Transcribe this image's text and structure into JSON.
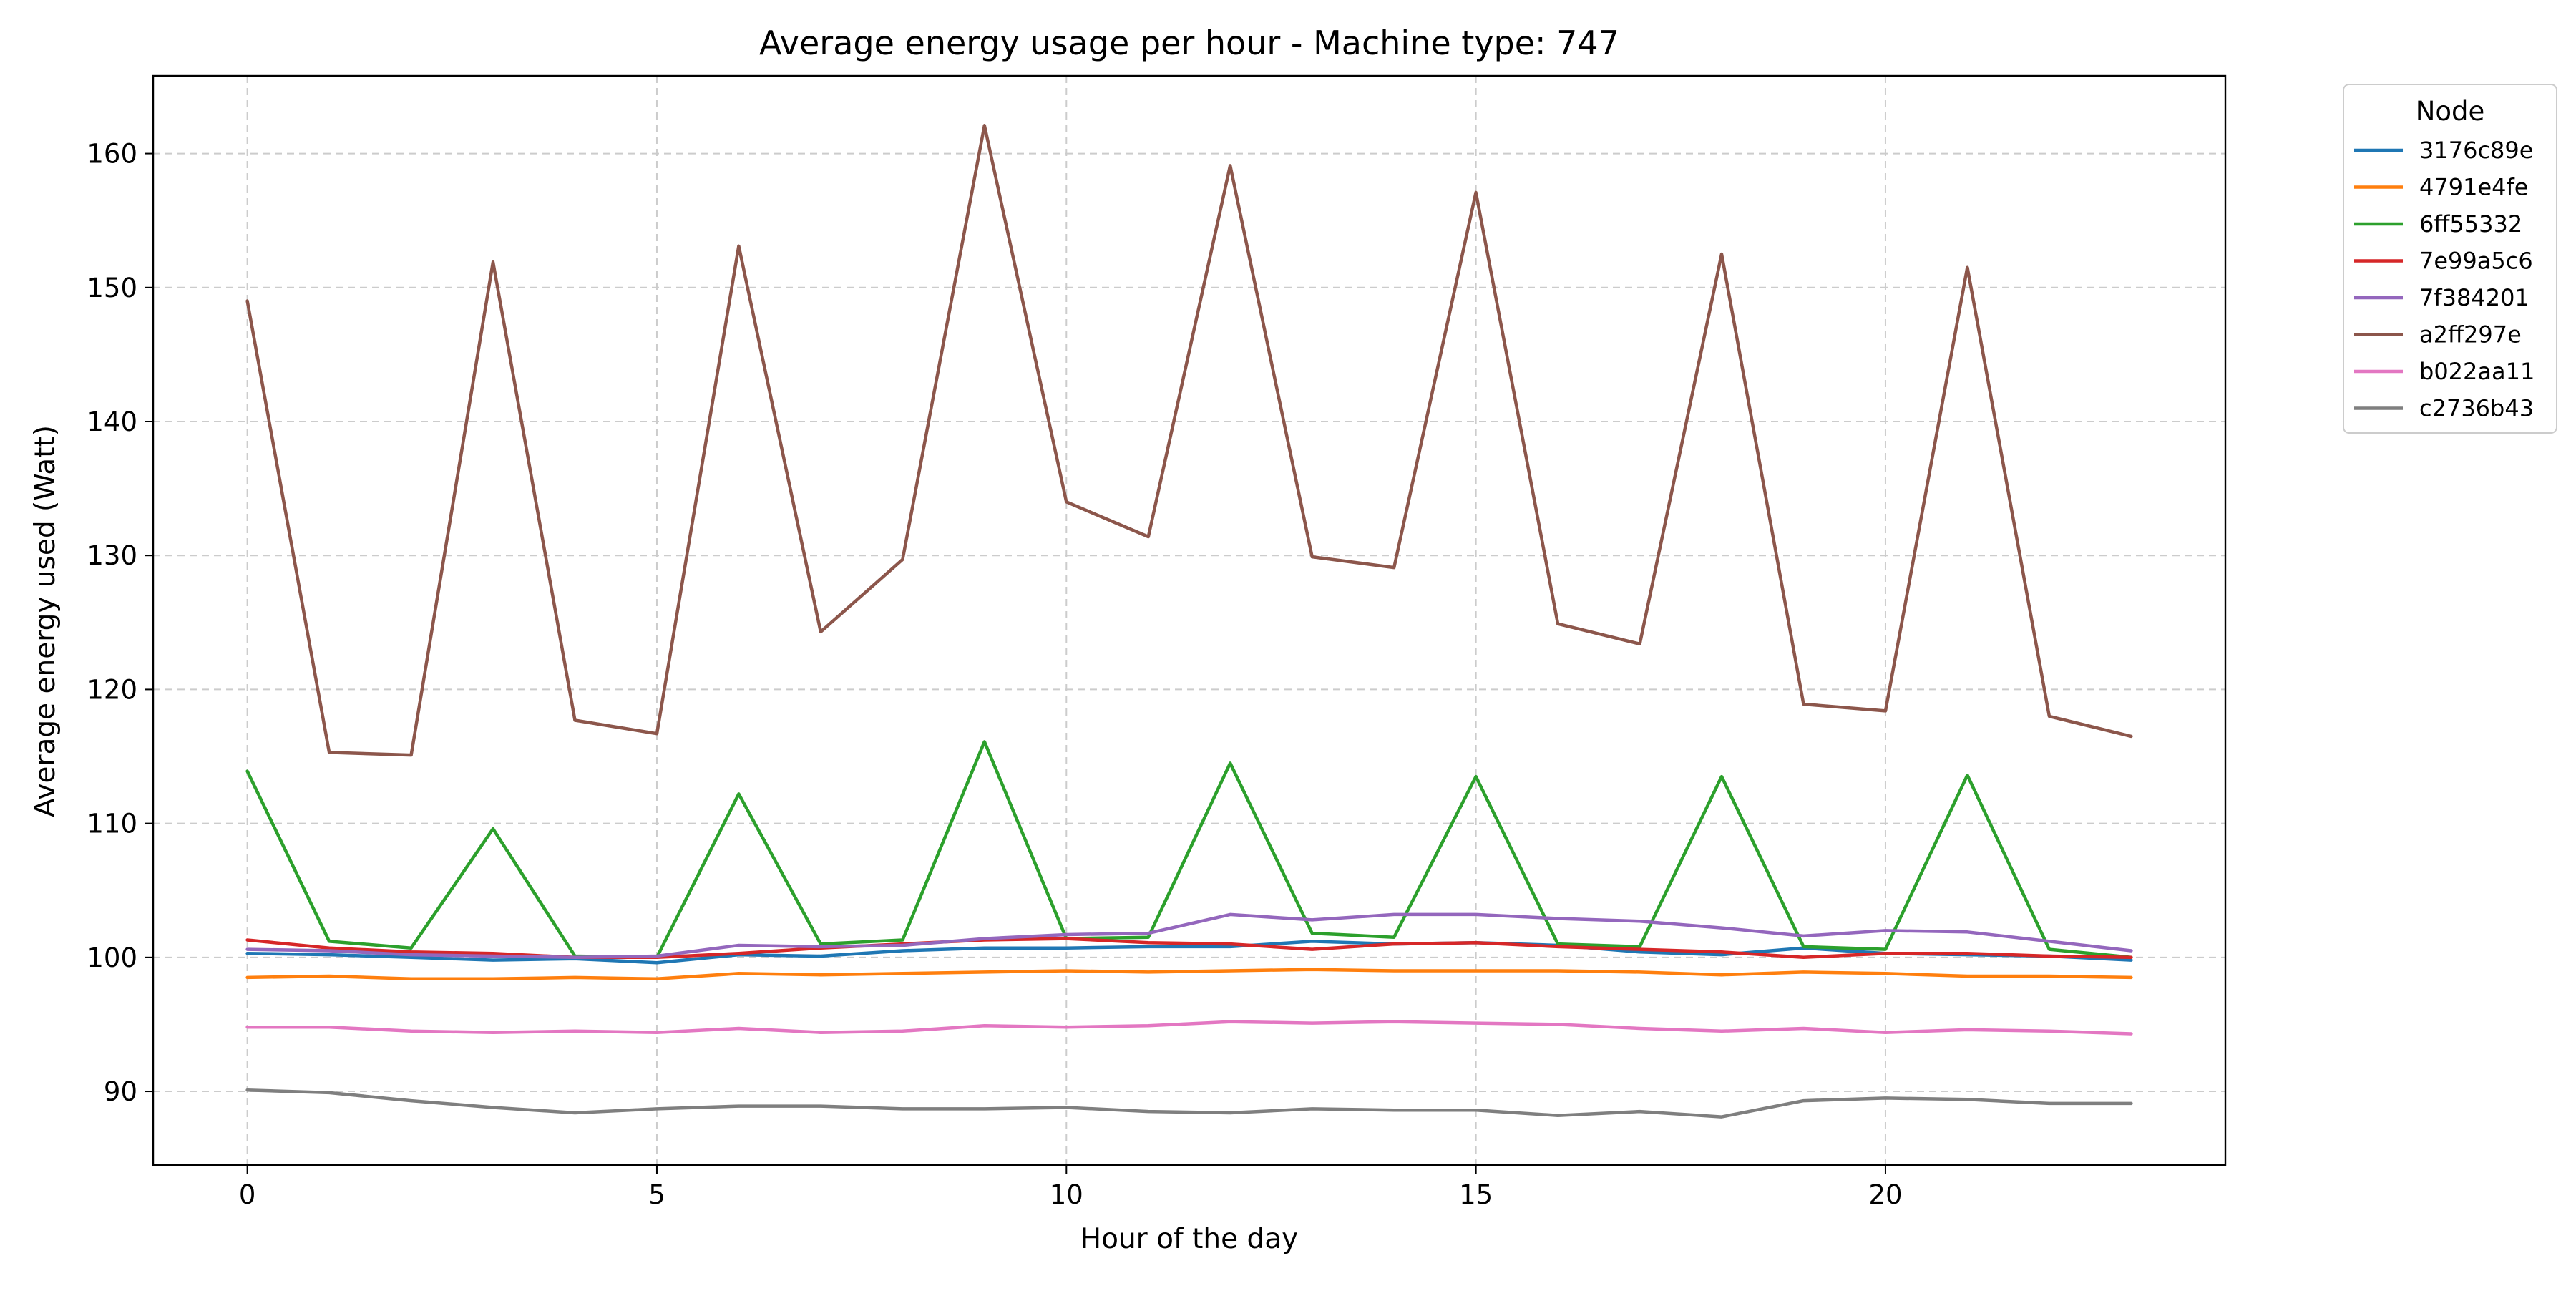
{
  "chart_data": {
    "type": "line",
    "title": "Average energy usage per hour - Machine type: 747",
    "xlabel": "Hour of the day",
    "ylabel": "Average energy used (Watt)",
    "xlim": [
      -1.15,
      24.15
    ],
    "ylim": [
      84.5,
      165.8
    ],
    "xticks": [
      0,
      5,
      10,
      15,
      20
    ],
    "yticks": [
      90,
      100,
      110,
      120,
      130,
      140,
      150,
      160
    ],
    "grid": true,
    "grid_style": "dashed",
    "legend": {
      "title": "Node",
      "placement": "outside-top-right"
    },
    "x": [
      0,
      1,
      2,
      3,
      4,
      5,
      6,
      7,
      8,
      9,
      10,
      11,
      12,
      13,
      14,
      15,
      16,
      17,
      18,
      19,
      20,
      21,
      22,
      23
    ],
    "series": [
      {
        "name": "3176c89e",
        "color": "#1f77b4",
        "values": [
          100.3,
          100.2,
          100.0,
          99.8,
          99.9,
          99.6,
          100.2,
          100.1,
          100.5,
          100.7,
          100.7,
          100.8,
          100.8,
          101.2,
          101.0,
          101.1,
          100.9,
          100.4,
          100.2,
          100.7,
          100.3,
          100.2,
          100.1,
          99.8
        ]
      },
      {
        "name": "4791e4fe",
        "color": "#ff7f0e",
        "values": [
          98.5,
          98.6,
          98.4,
          98.4,
          98.5,
          98.4,
          98.8,
          98.7,
          98.8,
          98.9,
          99.0,
          98.9,
          99.0,
          99.1,
          99.0,
          99.0,
          99.0,
          98.9,
          98.7,
          98.9,
          98.8,
          98.6,
          98.6,
          98.5
        ]
      },
      {
        "name": "6ff55332",
        "color": "#2ca02c",
        "values": [
          113.9,
          101.2,
          100.7,
          109.6,
          100.1,
          100.0,
          112.2,
          101.0,
          101.3,
          116.1,
          101.4,
          101.5,
          114.5,
          101.8,
          101.5,
          113.5,
          101.0,
          100.8,
          113.5,
          100.8,
          100.6,
          113.6,
          100.6,
          100.0
        ]
      },
      {
        "name": "7e99a5c6",
        "color": "#d62728",
        "values": [
          101.3,
          100.7,
          100.4,
          100.3,
          100.0,
          100.0,
          100.3,
          100.7,
          101.0,
          101.3,
          101.4,
          101.1,
          101.0,
          100.6,
          101.0,
          101.1,
          100.8,
          100.6,
          100.4,
          100.0,
          100.3,
          100.3,
          100.1,
          100.0
        ]
      },
      {
        "name": "7f384201",
        "color": "#9467bd",
        "values": [
          100.6,
          100.5,
          100.2,
          100.1,
          100.0,
          100.1,
          100.9,
          100.8,
          100.9,
          101.4,
          101.7,
          101.8,
          103.2,
          102.8,
          103.2,
          103.2,
          102.9,
          102.7,
          102.2,
          101.6,
          102.0,
          101.9,
          101.2,
          100.5
        ]
      },
      {
        "name": "a2ff297e",
        "color": "#8c564b",
        "values": [
          149.0,
          115.3,
          115.1,
          151.9,
          117.7,
          116.7,
          153.1,
          124.3,
          129.7,
          162.1,
          134.0,
          131.4,
          159.1,
          129.9,
          129.1,
          157.1,
          124.9,
          123.4,
          152.5,
          118.9,
          118.4,
          151.5,
          118.0,
          116.5
        ]
      },
      {
        "name": "b022aa11",
        "color": "#e377c2",
        "values": [
          94.8,
          94.8,
          94.5,
          94.4,
          94.5,
          94.4,
          94.7,
          94.4,
          94.5,
          94.9,
          94.8,
          94.9,
          95.2,
          95.1,
          95.2,
          95.1,
          95.0,
          94.7,
          94.5,
          94.7,
          94.4,
          94.6,
          94.5,
          94.3
        ]
      },
      {
        "name": "c2736b43",
        "color": "#7f7f7f",
        "values": [
          90.1,
          89.9,
          89.3,
          88.8,
          88.4,
          88.7,
          88.9,
          88.9,
          88.7,
          88.7,
          88.8,
          88.5,
          88.4,
          88.7,
          88.6,
          88.6,
          88.2,
          88.5,
          88.1,
          89.3,
          89.5,
          89.4,
          89.1,
          89.1
        ]
      }
    ]
  }
}
